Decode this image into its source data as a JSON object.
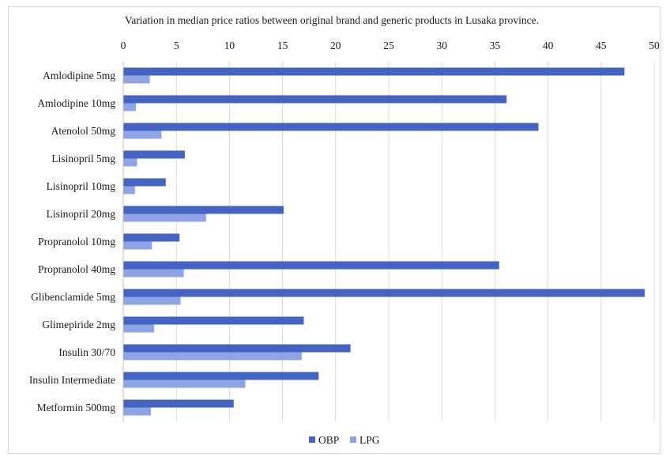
{
  "chart_data": {
    "type": "bar",
    "orientation": "horizontal",
    "title": "Variation in median price ratios between original brand and generic products in Lusaka province.",
    "xlabel": "",
    "ylabel": "",
    "xlim": [
      0,
      50
    ],
    "x_ticks": [
      0,
      5,
      10,
      15,
      20,
      25,
      30,
      35,
      40,
      45,
      50
    ],
    "x_axis_position": "top",
    "grid": true,
    "legend_position": "bottom",
    "categories": [
      "Amlodipine 5mg",
      "Amlodipine 10mg",
      "Atenolol 50mg",
      "Lisinopril 5mg",
      "Lisinopril 10mg",
      "Lisinopril 20mg",
      "Propranolol 10mg",
      "Propranolol 40mg",
      "Glibenclamide 5mg",
      "Glimepiride 2mg",
      "Insulin 30/70",
      "Insulin Intermediate",
      "Metformin 500mg"
    ],
    "series": [
      {
        "name": "OBP",
        "color": "#4364c2",
        "values": [
          47.2,
          36.1,
          39.1,
          5.8,
          4.0,
          15.1,
          5.3,
          35.4,
          49.1,
          17.0,
          21.4,
          18.4,
          10.4
        ]
      },
      {
        "name": "LPG",
        "color": "#8fa4e3",
        "values": [
          2.5,
          1.2,
          3.6,
          1.3,
          1.1,
          7.8,
          2.7,
          5.7,
          5.4,
          2.9,
          16.8,
          11.5,
          2.6
        ]
      }
    ]
  }
}
